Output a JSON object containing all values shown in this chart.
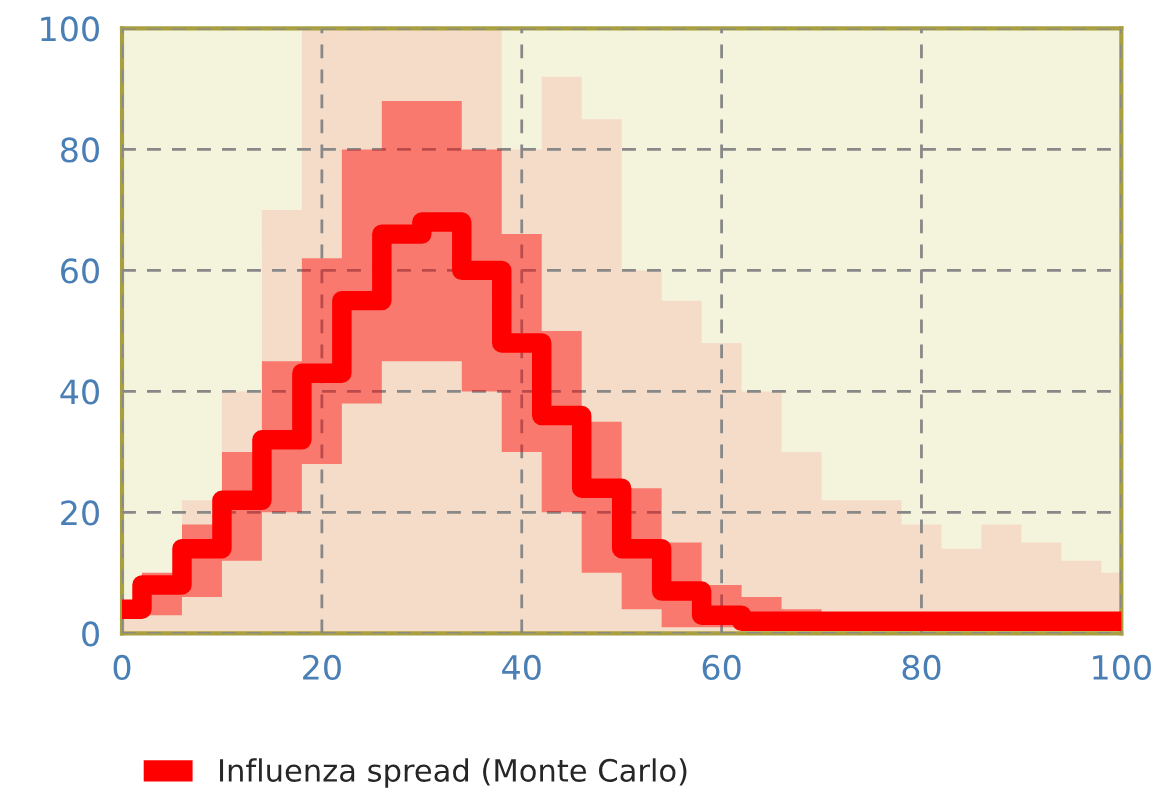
{
  "chart_data": {
    "type": "step",
    "x": [
      0,
      4,
      8,
      12,
      16,
      20,
      24,
      28,
      32,
      36,
      40,
      44,
      48,
      52,
      56,
      60,
      64,
      68,
      72,
      76,
      80,
      84,
      88,
      92,
      96,
      100
    ],
    "series": [
      {
        "type": "area",
        "color": "#f5dcc8",
        "values": [
          5,
          10,
          22,
          40,
          70,
          100,
          100,
          100,
          100,
          100,
          80,
          92,
          85,
          60,
          55,
          48,
          40,
          30,
          22,
          22,
          18,
          14,
          18,
          15,
          12,
          10
        ]
      },
      {
        "name": "Influenza spread (Monte Carlo)",
        "color": "#ff0000",
        "values": [
          4,
          8,
          14,
          22,
          32,
          43,
          55,
          66,
          68,
          60,
          48,
          36,
          24,
          14,
          7,
          3,
          2,
          2,
          2,
          2,
          2,
          2,
          2,
          2,
          2,
          2
        ],
        "lower": [
          3,
          3,
          6,
          12,
          20,
          28,
          38,
          45,
          45,
          40,
          30,
          20,
          10,
          4,
          1,
          1,
          1,
          1,
          1,
          1,
          1,
          1,
          1,
          1,
          1,
          1
        ],
        "upper": [
          5,
          10,
          18,
          30,
          45,
          62,
          80,
          88,
          88,
          80,
          66,
          50,
          35,
          24,
          15,
          8,
          6,
          4,
          2,
          2,
          2,
          2,
          2,
          2,
          2,
          2
        ]
      }
    ],
    "xlim": [
      0,
      100
    ],
    "ylim": [
      0,
      100
    ],
    "xticks": [
      0,
      20,
      40,
      60,
      80,
      100
    ],
    "yticks": [
      0,
      20,
      40,
      60,
      80,
      100
    ],
    "grid": true,
    "legend": "bottom"
  }
}
